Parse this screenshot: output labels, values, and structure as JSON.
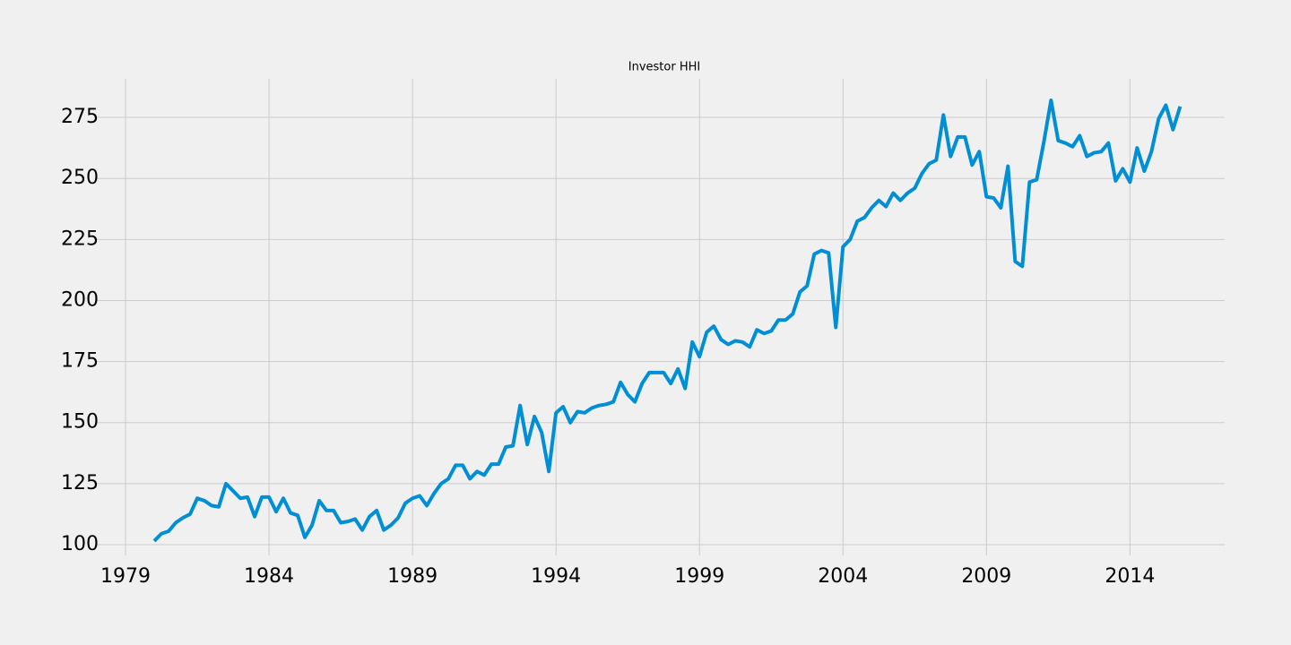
{
  "chart_data": {
    "type": "line",
    "title": "Investor HHI",
    "x": [
      1980,
      1980.25,
      1980.5,
      1980.75,
      1981,
      1981.25,
      1981.5,
      1981.75,
      1982,
      1982.25,
      1982.5,
      1982.75,
      1983,
      1983.25,
      1983.5,
      1983.75,
      1984,
      1984.25,
      1984.5,
      1984.75,
      1985,
      1985.25,
      1985.5,
      1985.75,
      1986,
      1986.25,
      1986.5,
      1986.75,
      1987,
      1987.25,
      1987.5,
      1987.75,
      1988,
      1988.25,
      1988.5,
      1988.75,
      1989,
      1989.25,
      1989.5,
      1989.75,
      1990,
      1990.25,
      1990.5,
      1990.75,
      1991,
      1991.25,
      1991.5,
      1991.75,
      1992,
      1992.25,
      1992.5,
      1992.75,
      1993,
      1993.25,
      1993.5,
      1993.75,
      1994,
      1994.25,
      1994.5,
      1994.75,
      1995,
      1995.25,
      1995.5,
      1995.75,
      1996,
      1996.25,
      1996.5,
      1996.75,
      1997,
      1997.25,
      1997.5,
      1997.75,
      1998,
      1998.25,
      1998.5,
      1998.75,
      1999,
      1999.25,
      1999.5,
      1999.75,
      2000,
      2000.25,
      2000.5,
      2000.75,
      2001,
      2001.25,
      2001.5,
      2001.75,
      2002,
      2002.25,
      2002.5,
      2002.75,
      2003,
      2003.25,
      2003.5,
      2003.75,
      2004,
      2004.25,
      2004.5,
      2004.75,
      2005,
      2005.25,
      2005.5,
      2005.75,
      2006,
      2006.25,
      2006.5,
      2006.75,
      2007,
      2007.25,
      2007.5,
      2007.75,
      2008,
      2008.25,
      2008.5,
      2008.75,
      2009,
      2009.25,
      2009.5,
      2009.75,
      2010,
      2010.25,
      2010.5,
      2010.75,
      2011,
      2011.25,
      2011.5,
      2011.75,
      2012,
      2012.25,
      2012.5,
      2012.75,
      2013,
      2013.25,
      2013.5,
      2013.75,
      2014,
      2014.25,
      2014.5,
      2014.75,
      2015,
      2015.25,
      2015.5,
      2015.75
    ],
    "series": [
      {
        "color": "#008fd5",
        "values": [
          101.5,
          104.5,
          105.5,
          109,
          111,
          112.5,
          119,
          118,
          116,
          115.5,
          125,
          122,
          119,
          119.5,
          111.5,
          119.5,
          119.5,
          113.5,
          119,
          113,
          112,
          103,
          108,
          118,
          114,
          114,
          109,
          109.5,
          110.5,
          106,
          111.5,
          114,
          106,
          108,
          111,
          117,
          119,
          120,
          116,
          121,
          125,
          127,
          132.5,
          132.5,
          127,
          130,
          128.5,
          133,
          133,
          140,
          140.5,
          157,
          141,
          152.5,
          146,
          130,
          154,
          156.5,
          150,
          154.5,
          154,
          156,
          157,
          157.5,
          158.5,
          166.5,
          161.5,
          158.5,
          166,
          170.5,
          170.5,
          170.5,
          166,
          172,
          164,
          183,
          177,
          187,
          189.5,
          184,
          182,
          183.5,
          183,
          181,
          188,
          186.5,
          187.5,
          192,
          192,
          194.5,
          203.5,
          206,
          219,
          220.5,
          219.5,
          189,
          222,
          225,
          232.5,
          234,
          238,
          241,
          238.5,
          244,
          241,
          244,
          246,
          252,
          256,
          257.5,
          276,
          259,
          267,
          267,
          255.5,
          261,
          242.5,
          242,
          238,
          255,
          216,
          214,
          248.5,
          249.5,
          265,
          282,
          265.5,
          264.5,
          263,
          267.5,
          259,
          260.5,
          261,
          264.5,
          249,
          254,
          248.5,
          262.5,
          253,
          261,
          274.5,
          280,
          270,
          279.5
        ]
      }
    ],
    "xlim": [
      1978,
      2017.3
    ],
    "xticks": [
      1979,
      1984,
      1989,
      1994,
      1999,
      2004,
      2009,
      2014
    ],
    "ylim": [
      95.6,
      290.8
    ],
    "yticks": [
      100,
      125,
      150,
      175,
      200,
      225,
      250,
      275
    ],
    "grid": true
  }
}
